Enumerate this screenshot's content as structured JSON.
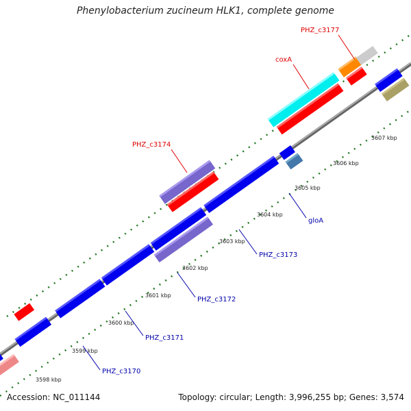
{
  "title": "Phenylobacterium zucineum HLK1, complete genome",
  "accession": "Accession: NC_011144",
  "summary": "Topology: circular; Length: 3,996,255 bp; Genes: 3,574",
  "colors": {
    "label_red": "#dd0000",
    "label_blue": "#0000aa",
    "backbone": "#888888",
    "tick_green": "#227722"
  },
  "ticks": [
    "3598 kbp",
    "3599 kbp",
    "3600 kbp",
    "3601 kbp",
    "3602 kbp",
    "3603 kbp",
    "3604 kbp",
    "3605 kbp",
    "3606 kbp",
    "3607 kbp"
  ],
  "gene_labels": [
    {
      "text": "PHZ_c3177",
      "color": "#dd0000"
    },
    {
      "text": "coxA",
      "color": "#dd0000"
    },
    {
      "text": "PHZ_c3174",
      "color": "#dd0000"
    },
    {
      "text": "gloA",
      "color": "#0000aa"
    },
    {
      "text": "PHZ_c3173",
      "color": "#0000aa"
    },
    {
      "text": "PHZ_c3172",
      "color": "#0000aa"
    },
    {
      "text": "PHZ_c3171",
      "color": "#0000aa"
    },
    {
      "text": "PHZ_c3170",
      "color": "#0000aa"
    }
  ]
}
